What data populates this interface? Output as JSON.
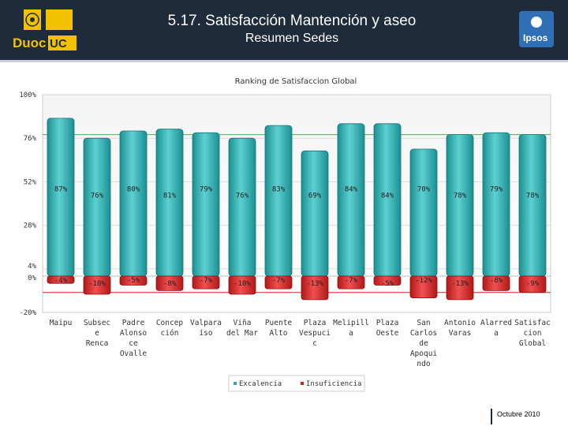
{
  "header": {
    "title": "5.17. Satisfacción Mantención y aseo",
    "subtitle": "Resumen Sedes",
    "logo_left_text": "DuocUC",
    "logo_right_text": "Ipsos"
  },
  "chart_data": {
    "type": "bar",
    "title": "Ranking de Satisfaccion Global",
    "yticks": [
      "100%",
      "76%",
      "52%",
      "28%",
      "4%",
      "0%",
      "-20%"
    ],
    "ytick_values": [
      100,
      76,
      52,
      28,
      4,
      0,
      -20
    ],
    "ylim": [
      -20,
      100
    ],
    "categories": [
      [
        "Maipu"
      ],
      [
        "Subsec",
        "e",
        "Renca"
      ],
      [
        "Padre",
        "Alonso",
        "ce",
        "Ovalle"
      ],
      [
        "Concep",
        "ción"
      ],
      [
        "Valpara",
        "íso"
      ],
      [
        "Viña",
        "del Mar"
      ],
      [
        "Puente",
        "Alto"
      ],
      [
        "Plaza",
        "Vespuci",
        "c"
      ],
      [
        "Melipill",
        "a"
      ],
      [
        "Plaza",
        "Oeste"
      ],
      [
        "San",
        "Carlos",
        "de",
        "Apoqui",
        "ndo"
      ],
      [
        "Antonio",
        "Varas"
      ],
      [
        "Alarred",
        "a"
      ],
      [
        "Satisfac",
        "cion",
        "Global"
      ]
    ],
    "series": [
      {
        "name": "Excalencia",
        "color": "#2fa7a8",
        "values": [
          87,
          76,
          80,
          81,
          79,
          76,
          83,
          69,
          84,
          84,
          70,
          78,
          79,
          78
        ],
        "labels": [
          "87%",
          "76%",
          "80%",
          "81%",
          "79%",
          "76%",
          "83%",
          "69%",
          "84%",
          "84%",
          "70%",
          "78%",
          "79%",
          "78%"
        ]
      },
      {
        "name": "Insuficiencia",
        "color": "#d42020",
        "values": [
          -4,
          -10,
          -5,
          -8,
          -7,
          -10,
          -7,
          -13,
          -7,
          -5,
          -12,
          -13,
          -8,
          -9
        ],
        "labels": [
          "-4%",
          "-10%",
          "-5%",
          "-8%",
          "-7%",
          "-10%",
          "-7%",
          "-13%",
          "-7%",
          "-5%",
          "-12%",
          "-13%",
          "-8%",
          "-9%"
        ]
      }
    ],
    "legend_position": "bottom"
  },
  "footer": {
    "date": "Octubre 2010"
  }
}
